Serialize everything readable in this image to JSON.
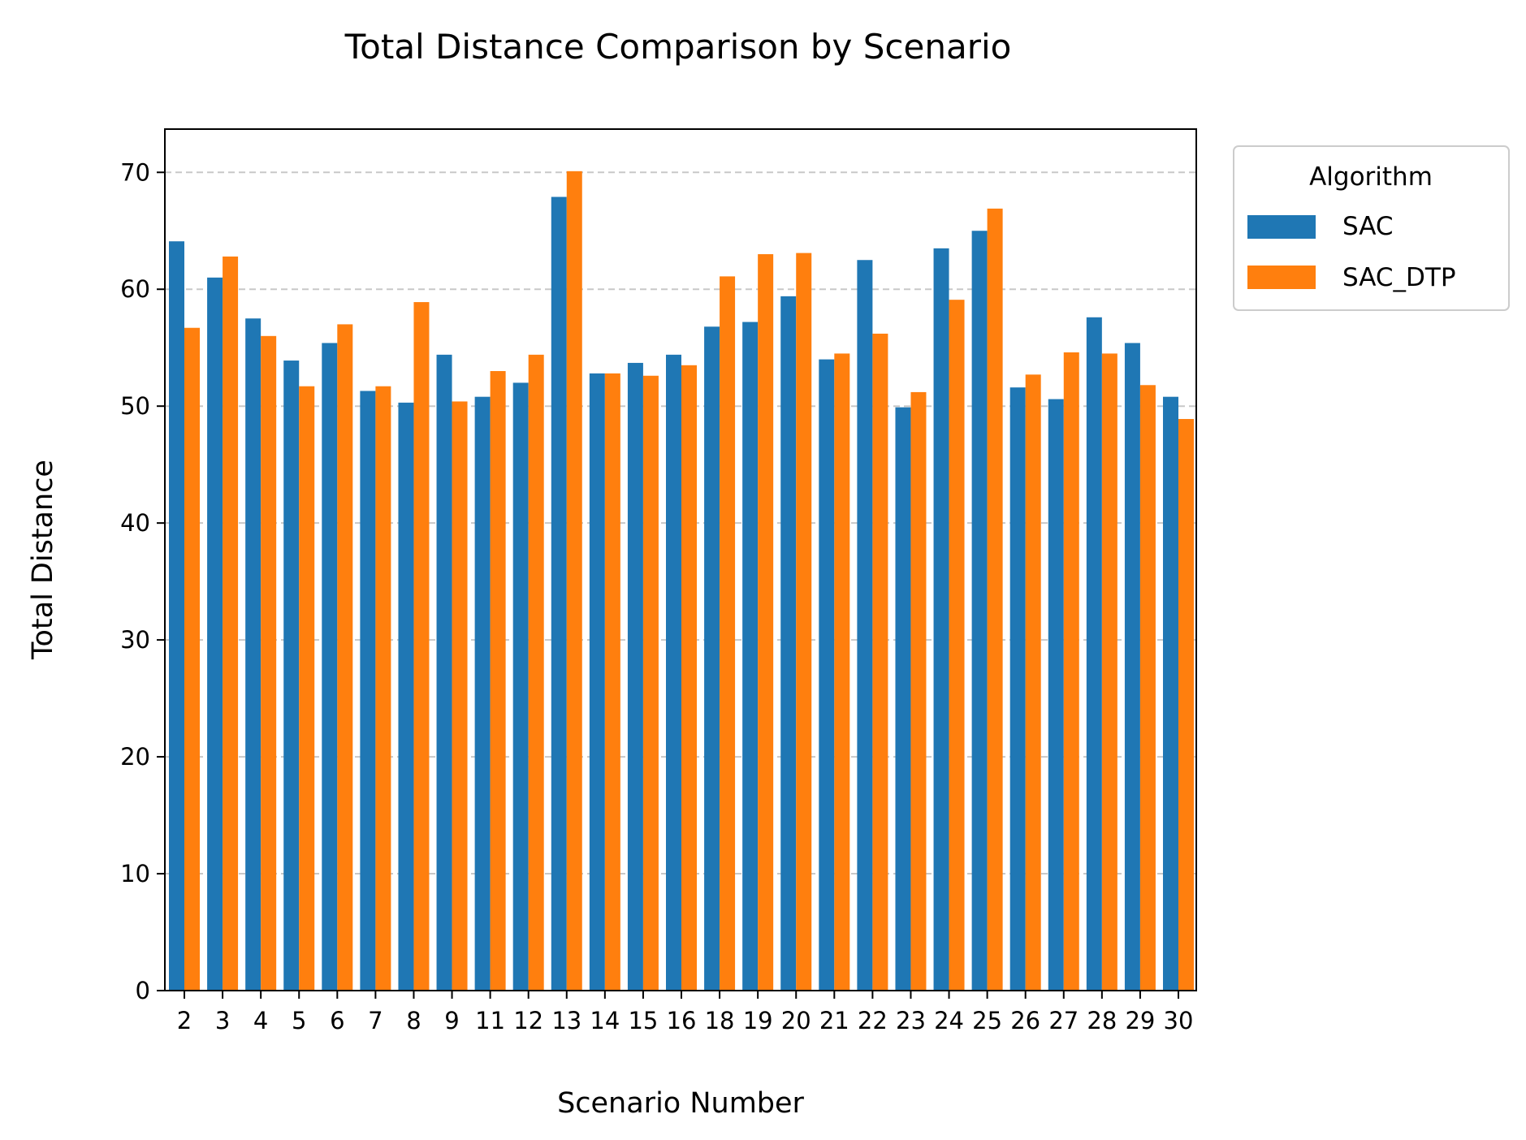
{
  "chart_data": {
    "type": "bar",
    "title": "Total Distance Comparison by Scenario",
    "xlabel": "Scenario Number",
    "ylabel": "Total Distance",
    "ylim": [
      0,
      73.7
    ],
    "yticks": [
      0,
      10,
      20,
      30,
      40,
      50,
      60,
      70
    ],
    "grid": "y-dashed",
    "legend": {
      "title": "Algorithm",
      "placement": "outside-top-right"
    },
    "categories": [
      "2",
      "3",
      "4",
      "5",
      "6",
      "7",
      "8",
      "9",
      "11",
      "12",
      "13",
      "14",
      "15",
      "16",
      "18",
      "19",
      "20",
      "21",
      "22",
      "23",
      "24",
      "25",
      "26",
      "27",
      "28",
      "29",
      "30"
    ],
    "series": [
      {
        "name": "SAC",
        "color": "#1f77b4",
        "values": [
          64.1,
          61.0,
          57.5,
          53.9,
          55.4,
          51.3,
          50.3,
          54.4,
          50.8,
          52.0,
          67.9,
          52.8,
          53.7,
          54.4,
          56.8,
          57.2,
          59.4,
          54.0,
          62.5,
          49.9,
          63.5,
          65.0,
          51.6,
          50.6,
          57.6,
          55.4,
          50.8
        ]
      },
      {
        "name": "SAC_DTP",
        "color": "#ff7f0e",
        "values": [
          56.7,
          62.8,
          56.0,
          51.7,
          57.0,
          51.7,
          58.9,
          50.4,
          53.0,
          54.4,
          70.1,
          52.8,
          52.6,
          53.5,
          61.1,
          63.0,
          63.1,
          54.5,
          56.2,
          51.2,
          59.1,
          66.9,
          52.7,
          54.6,
          54.5,
          51.8,
          48.9
        ]
      }
    ]
  }
}
